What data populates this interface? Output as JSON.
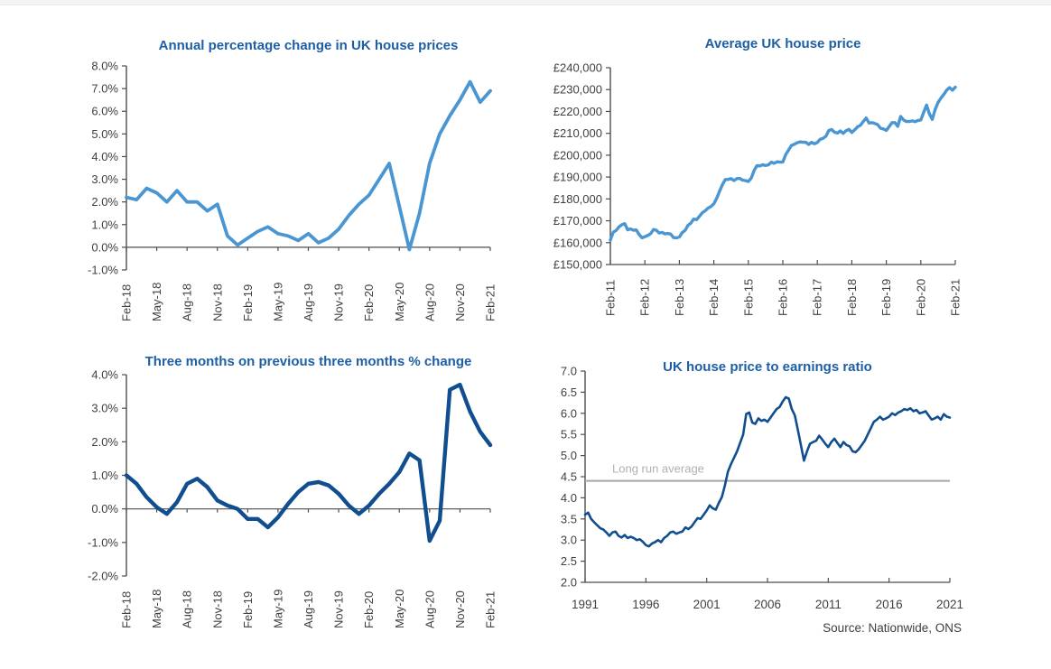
{
  "page": {
    "source_note": "Source: Nationwide, ONS"
  },
  "colors": {
    "title_blue": "#1d5fa5",
    "light_blue_line": "#4a96d2",
    "dark_blue_line": "#114e8f",
    "axis_gray": "#4d4d4d",
    "tick_label_gray": "#404040",
    "long_run_line_gray": "#a6a6a6",
    "long_run_label_gray": "#b0b0b0"
  },
  "chart_data": [
    {
      "id": "c1",
      "type": "line",
      "title": "Annual percentage change in UK house prices",
      "ylim": [
        -1.0,
        8.0
      ],
      "y_tick_labels": [
        "8.0%",
        "7.0%",
        "6.0%",
        "5.0%",
        "4.0%",
        "3.0%",
        "2.0%",
        "1.0%",
        "0.0%",
        "-1.0%"
      ],
      "axis_cross": 0,
      "x_start": "Feb-18",
      "x_end": "Feb-21",
      "frequency": "monthly",
      "x_tick_labels": [
        "Feb-18",
        "May-18",
        "Aug-18",
        "Nov-18",
        "Feb-19",
        "May-19",
        "Aug-19",
        "Nov-19",
        "Feb-20",
        "May-20",
        "Aug-20",
        "Nov-20",
        "Feb-21"
      ],
      "x_tick_every": 3,
      "line_color": "#4a96d2",
      "values": [
        2.2,
        2.1,
        2.6,
        2.4,
        2.0,
        2.5,
        2.0,
        2.0,
        1.6,
        1.9,
        0.5,
        0.1,
        0.4,
        0.7,
        0.9,
        0.6,
        0.5,
        0.3,
        0.6,
        0.2,
        0.4,
        0.8,
        1.4,
        1.9,
        2.3,
        3.0,
        3.7,
        1.8,
        -0.1,
        1.5,
        3.7,
        5.0,
        5.8,
        6.5,
        7.3,
        6.4,
        6.9
      ]
    },
    {
      "id": "c2",
      "type": "line",
      "title": "Average UK house price",
      "ylim": [
        150000,
        240000
      ],
      "y_tick_labels": [
        "£240,000",
        "£230,000",
        "£220,000",
        "£210,000",
        "£200,000",
        "£190,000",
        "£180,000",
        "£170,000",
        "£160,000",
        "£150,000"
      ],
      "axis_cross": 150000,
      "x_start": "Feb-11",
      "x_end": "Feb-21",
      "frequency": "monthly",
      "x_tick_labels": [
        "Feb-11",
        "Feb-12",
        "Feb-13",
        "Feb-14",
        "Feb-15",
        "Feb-16",
        "Feb-17",
        "Feb-18",
        "Feb-19",
        "Feb-20",
        "Feb-21"
      ],
      "x_tick_every": 12,
      "line_color": "#4a96d2",
      "values": [
        161200,
        164800,
        165600,
        167200,
        168200,
        168700,
        165900,
        166300,
        165700,
        165800,
        163800,
        162200,
        162700,
        163300,
        164100,
        166000,
        165700,
        164400,
        164700,
        164000,
        164200,
        163900,
        162300,
        162200,
        162600,
        164600,
        165600,
        167900,
        168900,
        170800,
        170500,
        172100,
        173700,
        174600,
        175800,
        176500,
        177800,
        180300,
        183600,
        186500,
        188900,
        188900,
        189300,
        188400,
        189300,
        189400,
        188600,
        188400,
        188000,
        189500,
        193000,
        195200,
        195100,
        195600,
        195300,
        195600,
        196800,
        196300,
        197000,
        196800,
        196900,
        200300,
        202400,
        204400,
        205000,
        205700,
        206100,
        205900,
        205900,
        204900,
        205900,
        205200,
        205800,
        207300,
        207700,
        208700,
        211300,
        211700,
        210500,
        210100,
        211100,
        210000,
        211200,
        211800,
        210400,
        211600,
        213000,
        213600,
        215400,
        217000,
        214700,
        214900,
        214500,
        214000,
        212300,
        212000,
        211300,
        213100,
        214900,
        214900,
        213200,
        217700,
        216100,
        215400,
        215400,
        215700,
        215300,
        215900,
        216100,
        219600,
        222900,
        218900,
        216400,
        220900,
        224100,
        226100,
        227800,
        229700,
        230900,
        229700,
        231100
      ]
    },
    {
      "id": "c3",
      "type": "line",
      "title": "Three months on previous three months % change",
      "ylim": [
        -2.0,
        4.0
      ],
      "y_tick_labels": [
        "4.0%",
        "3.0%",
        "2.0%",
        "1.0%",
        "0.0%",
        "-1.0%",
        "-2.0%"
      ],
      "axis_cross": 0,
      "x_start": "Feb-18",
      "x_end": "Feb-21",
      "frequency": "monthly",
      "x_tick_labels": [
        "Feb-18",
        "May-18",
        "Aug-18",
        "Nov-18",
        "Feb-19",
        "May-19",
        "Aug-19",
        "Nov-19",
        "Feb-20",
        "May-20",
        "Aug-20",
        "Nov-20",
        "Feb-21"
      ],
      "x_tick_every": 3,
      "line_color": "#114e8f",
      "values": [
        1.0,
        0.75,
        0.35,
        0.05,
        -0.15,
        0.2,
        0.75,
        0.9,
        0.65,
        0.25,
        0.1,
        0.0,
        -0.3,
        -0.3,
        -0.55,
        -0.25,
        0.15,
        0.5,
        0.75,
        0.8,
        0.7,
        0.45,
        0.1,
        -0.15,
        0.1,
        0.45,
        0.75,
        1.1,
        1.65,
        1.45,
        -0.95,
        -0.35,
        3.55,
        3.7,
        2.9,
        2.3,
        1.9
      ]
    },
    {
      "id": "c4",
      "type": "line",
      "title": "UK house price to earnings ratio",
      "ylim": [
        2.0,
        7.0
      ],
      "y_tick_labels": [
        "7.0",
        "6.5",
        "6.0",
        "5.5",
        "5.0",
        "4.5",
        "4.0",
        "3.5",
        "3.0",
        "2.5",
        "2.0"
      ],
      "axis_cross": 2.0,
      "x_start": 1991,
      "x_end": 2021,
      "frequency": "quarterly",
      "x_tick_labels": [
        "1991",
        "1996",
        "2001",
        "2006",
        "2011",
        "2016",
        "2021"
      ],
      "x_tick_every": 20,
      "line_color": "#114e8f",
      "reference_line": {
        "value": 4.4,
        "label": "Long run average"
      },
      "values": [
        3.6,
        3.65,
        3.5,
        3.42,
        3.35,
        3.28,
        3.25,
        3.18,
        3.1,
        3.18,
        3.2,
        3.1,
        3.06,
        3.12,
        3.05,
        3.08,
        3.05,
        3.0,
        3.02,
        2.96,
        2.88,
        2.85,
        2.92,
        2.95,
        3.0,
        2.95,
        3.05,
        3.1,
        3.18,
        3.2,
        3.15,
        3.18,
        3.2,
        3.3,
        3.26,
        3.32,
        3.42,
        3.52,
        3.5,
        3.6,
        3.7,
        3.82,
        3.75,
        3.72,
        3.88,
        4.02,
        4.3,
        4.62,
        4.8,
        4.95,
        5.1,
        5.3,
        5.5,
        5.98,
        6.02,
        5.78,
        5.75,
        5.88,
        5.82,
        5.85,
        5.8,
        5.9,
        6.0,
        6.1,
        6.15,
        6.28,
        6.38,
        6.35,
        6.1,
        5.95,
        5.6,
        5.25,
        4.88,
        5.1,
        5.28,
        5.32,
        5.35,
        5.47,
        5.38,
        5.28,
        5.2,
        5.32,
        5.4,
        5.3,
        5.2,
        5.32,
        5.25,
        5.22,
        5.1,
        5.08,
        5.15,
        5.25,
        5.35,
        5.5,
        5.65,
        5.8,
        5.85,
        5.92,
        5.85,
        5.88,
        5.92,
        6.0,
        5.96,
        6.02,
        6.05,
        6.1,
        6.08,
        6.12,
        6.05,
        6.08,
        6.0,
        6.02,
        6.05,
        5.95,
        5.85,
        5.88,
        5.92,
        5.85,
        5.98,
        5.92,
        5.9
      ]
    }
  ]
}
